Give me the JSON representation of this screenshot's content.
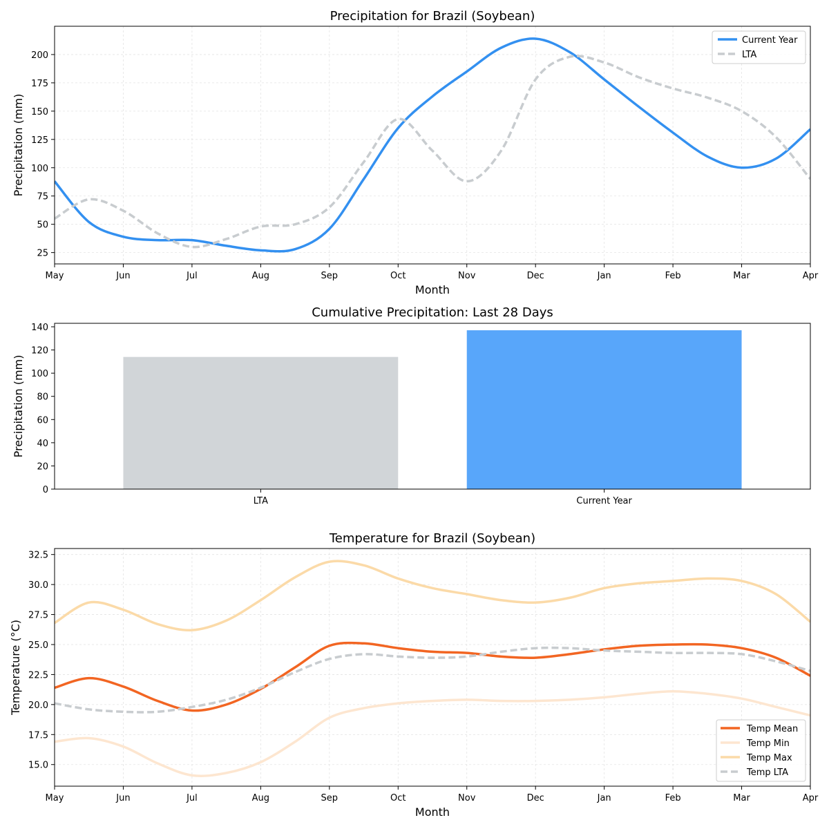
{
  "chart_data": [
    {
      "type": "line",
      "title": "Precipitation for Brazil (Soybean)",
      "xlabel": "Month",
      "ylabel": "Precipitation (mm)",
      "categories": [
        "May",
        "Jun",
        "Jul",
        "Aug",
        "Sep",
        "Oct",
        "Nov",
        "Dec",
        "Jan",
        "Feb",
        "Mar",
        "Apr"
      ],
      "x": [
        0,
        0.5,
        1,
        1.5,
        2,
        2.5,
        3,
        3.5,
        4,
        4.5,
        5,
        5.5,
        6,
        6.5,
        7,
        7.5,
        8,
        8.5,
        9,
        9.5,
        10,
        10.5,
        11
      ],
      "ylim": [
        15,
        225
      ],
      "yticks": [
        25,
        50,
        75,
        100,
        125,
        150,
        175,
        200
      ],
      "grid": true,
      "legend": "top-right",
      "series": [
        {
          "name": "Current Year",
          "color": "#3390f0",
          "dash": "solid",
          "values": [
            88,
            52,
            39,
            36,
            36,
            31,
            27,
            28,
            46,
            90,
            135,
            163,
            185,
            206,
            214,
            202,
            178,
            154,
            131,
            110,
            100,
            108,
            134
          ]
        },
        {
          "name": "LTA",
          "color": "#c8cccf",
          "dash": "dashed",
          "values": [
            55,
            72,
            62,
            42,
            30,
            37,
            48,
            50,
            65,
            105,
            143,
            115,
            88,
            115,
            178,
            198,
            193,
            180,
            170,
            162,
            150,
            127,
            90
          ]
        }
      ]
    },
    {
      "type": "bar",
      "title": "Cumulative Precipitation: Last 28 Days",
      "xlabel": "",
      "ylabel": "Precipitation (mm)",
      "categories": [
        "LTA",
        "Current Year"
      ],
      "values": [
        114,
        137
      ],
      "colors": [
        "#d1d5d8",
        "#58a6fa"
      ],
      "ylim": [
        0,
        143
      ],
      "yticks": [
        0,
        20,
        40,
        60,
        80,
        100,
        120,
        140
      ],
      "grid": false
    },
    {
      "type": "line",
      "title": "Temperature for Brazil (Soybean)",
      "xlabel": "Month",
      "ylabel": "Temperature (°C)",
      "categories": [
        "May",
        "Jun",
        "Jul",
        "Aug",
        "Sep",
        "Oct",
        "Nov",
        "Dec",
        "Jan",
        "Feb",
        "Mar",
        "Apr"
      ],
      "x": [
        0,
        0.5,
        1,
        1.5,
        2,
        2.5,
        3,
        3.5,
        4,
        4.5,
        5,
        5.5,
        6,
        6.5,
        7,
        7.5,
        8,
        8.5,
        9,
        9.5,
        10,
        10.5,
        11
      ],
      "ylim": [
        13.2,
        33.0
      ],
      "yticks": [
        15.0,
        17.5,
        20.0,
        22.5,
        25.0,
        27.5,
        30.0,
        32.5
      ],
      "grid": true,
      "legend": "lower-right",
      "series": [
        {
          "name": "Temp Mean",
          "color": "#f26522",
          "dash": "solid",
          "values": [
            21.4,
            22.2,
            21.5,
            20.3,
            19.5,
            20.0,
            21.3,
            23.1,
            24.9,
            25.1,
            24.7,
            24.4,
            24.3,
            24.0,
            23.9,
            24.2,
            24.6,
            24.9,
            25.0,
            25.0,
            24.7,
            23.9,
            22.4
          ]
        },
        {
          "name": "Temp Min",
          "color": "#fde6d0",
          "dash": "solid",
          "values": [
            16.9,
            17.2,
            16.5,
            15.1,
            14.1,
            14.3,
            15.2,
            16.9,
            18.9,
            19.7,
            20.1,
            20.3,
            20.4,
            20.3,
            20.3,
            20.4,
            20.6,
            20.9,
            21.1,
            20.9,
            20.5,
            19.8,
            19.1
          ]
        },
        {
          "name": "Temp Max",
          "color": "#fbdaa8",
          "dash": "solid",
          "values": [
            26.8,
            28.5,
            27.9,
            26.7,
            26.2,
            27.0,
            28.7,
            30.6,
            31.9,
            31.6,
            30.5,
            29.7,
            29.2,
            28.7,
            28.5,
            28.9,
            29.7,
            30.1,
            30.3,
            30.5,
            30.3,
            29.2,
            26.9
          ]
        },
        {
          "name": "Temp LTA",
          "color": "#c8cccf",
          "dash": "dashed",
          "values": [
            20.1,
            19.6,
            19.4,
            19.4,
            19.8,
            20.4,
            21.4,
            22.7,
            23.8,
            24.2,
            24.0,
            23.9,
            24.0,
            24.4,
            24.7,
            24.7,
            24.5,
            24.4,
            24.3,
            24.3,
            24.2,
            23.6,
            22.8
          ]
        }
      ]
    }
  ]
}
